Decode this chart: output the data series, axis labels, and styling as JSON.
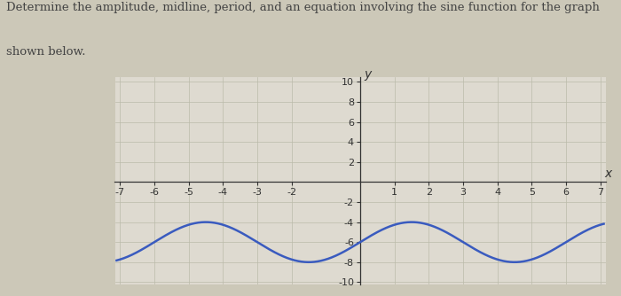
{
  "title_line1": "Determine the amplitude, midline, period, and an equation involving the sine function for the graph",
  "title_line2": "shown below.",
  "amplitude": 2,
  "midline": -6,
  "period": 6,
  "phase_shift": 0,
  "x_min": -7,
  "x_max": 7,
  "y_min": -10,
  "y_max": 10,
  "x_ticks_show": [
    -7,
    -6,
    -5,
    -4,
    -3,
    -2,
    1,
    2,
    3,
    4,
    5,
    6,
    7
  ],
  "y_ticks_show": [
    -10,
    -8,
    -6,
    -4,
    -2,
    2,
    4,
    6,
    8,
    10
  ],
  "curve_color": "#3a5bbf",
  "grid_color": "#bbbbaa",
  "background_color": "#ccc8b8",
  "plot_bg_color": "#dedad0",
  "axis_color": "#333333",
  "text_color": "#444444",
  "curve_linewidth": 1.8,
  "title_fontsize": 9.5,
  "tick_fontsize": 8.0,
  "axis_label_fontsize": 10
}
